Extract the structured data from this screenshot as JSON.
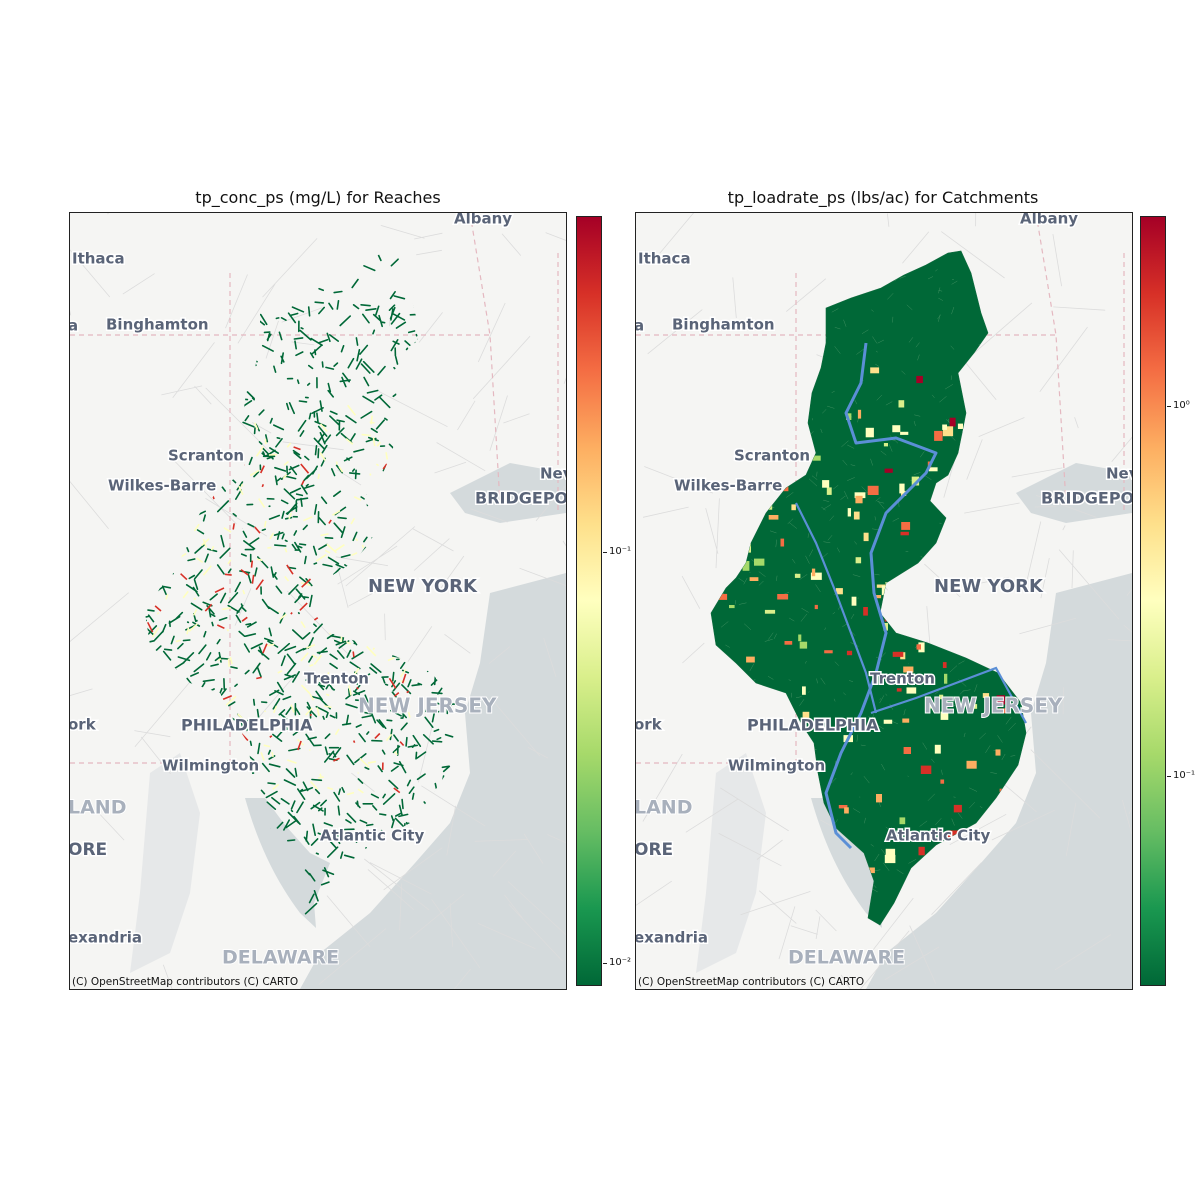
{
  "panels": [
    {
      "title": "tp_conc_ps (mg/L) for Reaches",
      "attribution": "(C) OpenStreetMap contributors (C) CARTO",
      "colorbar_ticks": [
        "10⁻¹",
        "10⁻²"
      ],
      "layer_type": "reaches"
    },
    {
      "title": "tp_loadrate_ps (lbs/ac) for Catchments",
      "attribution": "(C) OpenStreetMap contributors (C) CARTO",
      "colorbar_ticks": [
        "10⁰",
        "10⁻¹"
      ],
      "layer_type": "catchments"
    }
  ],
  "place_labels": {
    "albany": "Albany",
    "ithaca": "Ithaca",
    "binghamton": "Binghamton",
    "scranton": "Scranton",
    "wilkes_barre": "Wilkes-Barre",
    "bridgeport": "BRIDGEPO",
    "new_york": "NEW YORK",
    "new_haven_partial": "Nev",
    "trenton": "Trenton",
    "new_jersey": "NEW JERSEY",
    "philadelphia": "PHILADELPHIA",
    "york_partial": "ork",
    "wilmington": "Wilmington",
    "maryland_partial": "LAND",
    "baltimore_partial": "ORE",
    "atlantic_city": "Atlantic City",
    "alexandria_partial": "exandria",
    "delaware": "DELAWARE",
    "left_edge_partial": "a"
  },
  "colormap": {
    "name": "RdYlGn_r",
    "stops": [
      "#006837",
      "#1a9850",
      "#66bd63",
      "#a6d96a",
      "#d9ef8b",
      "#ffffbf",
      "#fee08b",
      "#fdae61",
      "#f46d43",
      "#d73027",
      "#a50026"
    ]
  },
  "colors": {
    "basemap_land": "#f5f5f3",
    "water": "#d4dadc",
    "state_border": "#e4b8c0",
    "river_line": "#5b8fd6"
  }
}
